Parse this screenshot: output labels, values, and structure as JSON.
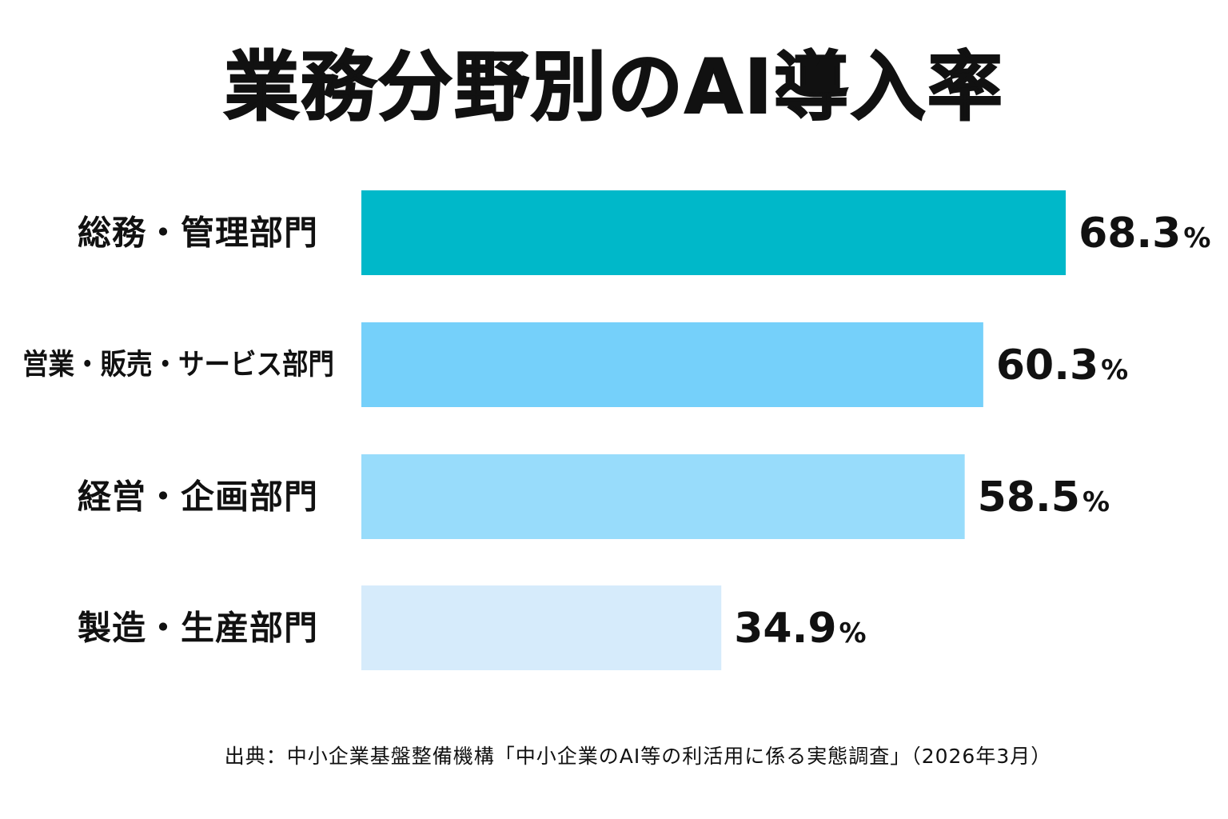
{
  "chart_data": {
    "type": "bar",
    "orientation": "horizontal",
    "title": "業務分野別のAI導入率",
    "categories": [
      "総務・管理部門",
      "営業・販売・サービス部門",
      "経営・企画部門",
      "製造・生産部門"
    ],
    "values": [
      68.3,
      60.3,
      58.5,
      34.9
    ],
    "value_unit": "%",
    "colors": [
      "#00b8c9",
      "#75d0fa",
      "#98dcfb",
      "#d6ebfb"
    ],
    "xlabel": "",
    "ylabel": "",
    "xlim": [
      0,
      100
    ],
    "grid": false,
    "legend": "none"
  },
  "footer": {
    "source": "出典：中小企業基盤整備機構「中小企業のAI等の利活用に係る実態調査」（2026年3月）"
  }
}
